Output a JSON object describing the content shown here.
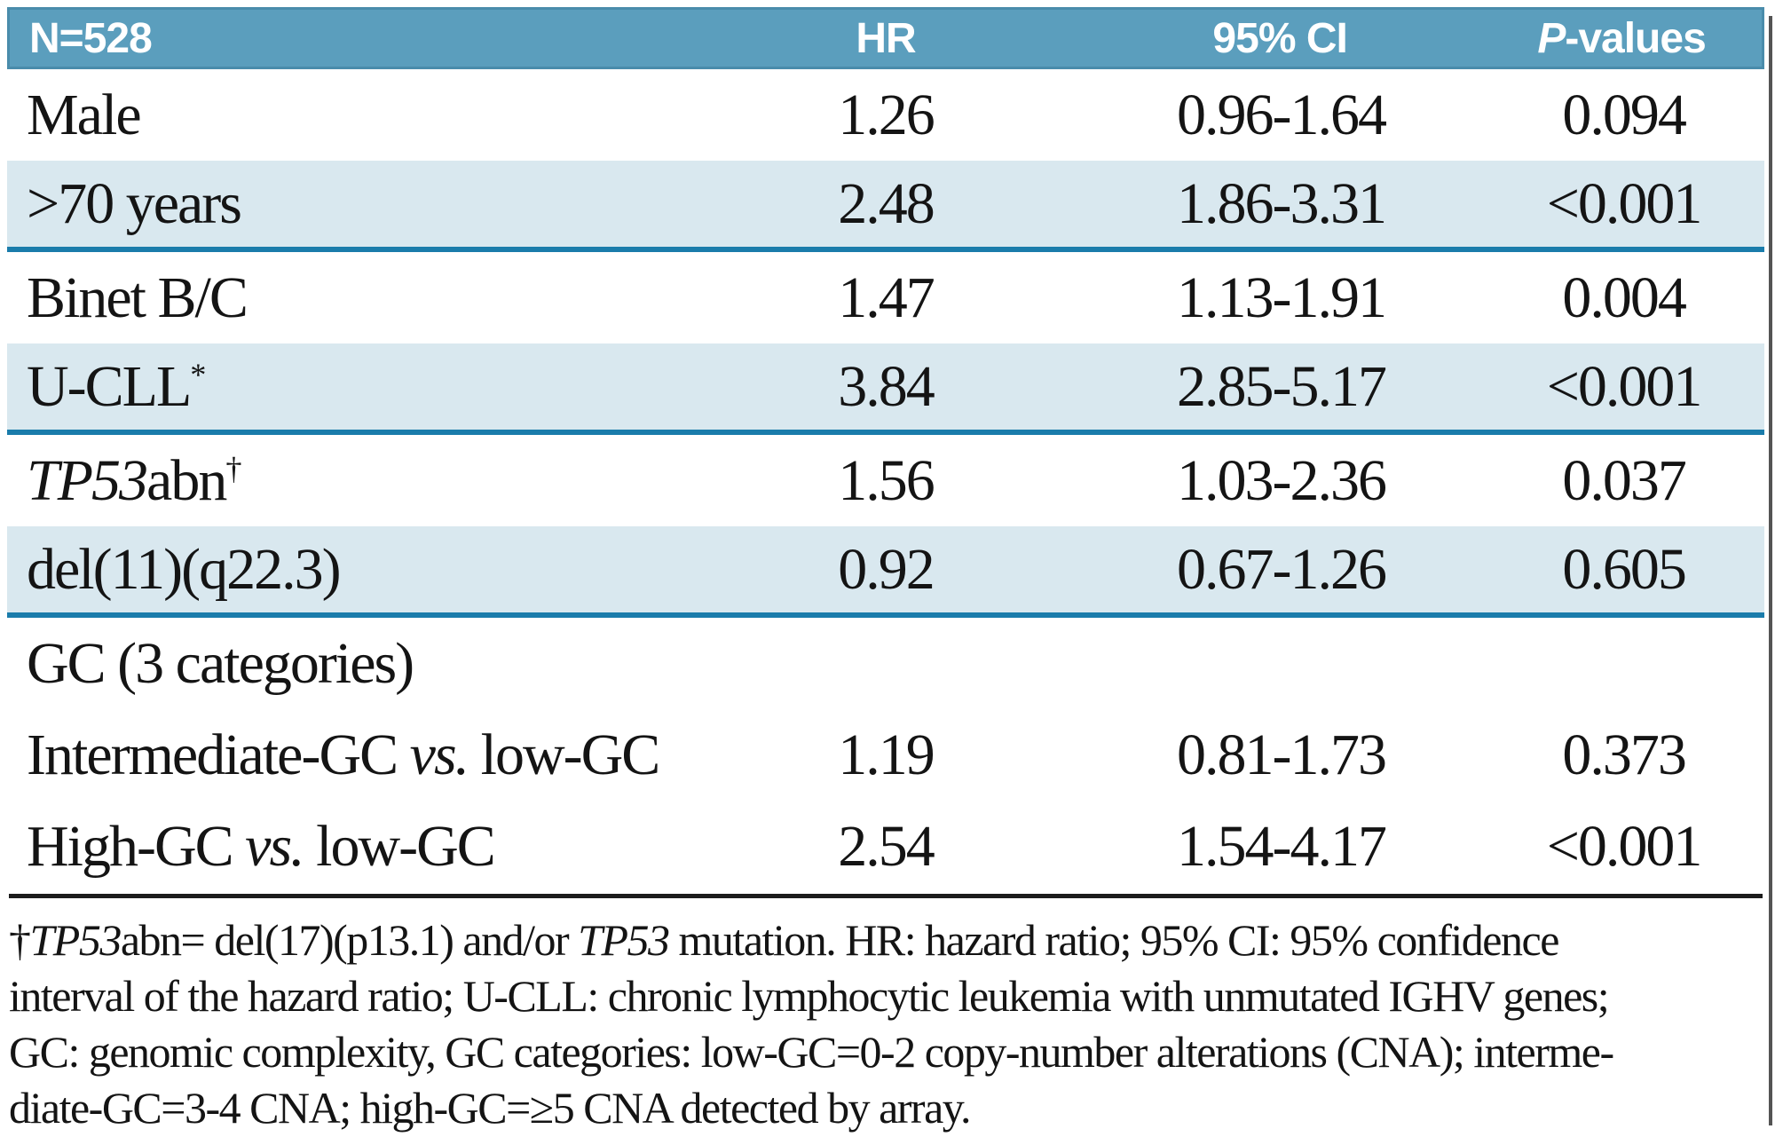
{
  "table": {
    "header": {
      "n": "N=528",
      "hr": "HR",
      "ci": "95% CI",
      "p_parts": [
        {
          "t": "P",
          "style": "i"
        },
        {
          "t": "-values"
        }
      ]
    },
    "rows": [
      {
        "label_parts": [
          {
            "t": "Male"
          }
        ],
        "hr": "1.26",
        "ci": "0.96-1.64",
        "p": "0.094",
        "shaded": false
      },
      {
        "label_parts": [
          {
            "t": ">70 years"
          }
        ],
        "hr": "2.48",
        "ci": "1.86-3.31",
        "p": "<0.001",
        "shaded": true
      },
      {
        "label_parts": [
          {
            "t": "Binet B/C"
          }
        ],
        "hr": "1.47",
        "ci": "1.13-1.91",
        "p": "0.004",
        "shaded": false
      },
      {
        "label_parts": [
          {
            "t": "U-CLL"
          },
          {
            "t": "*",
            "style": "sup"
          }
        ],
        "hr": "3.84",
        "ci": "2.85-5.17",
        "p": "<0.001",
        "shaded": true
      },
      {
        "label_parts": [
          {
            "t": "TP53",
            "style": "i"
          },
          {
            "t": "abn"
          },
          {
            "t": "†",
            "style": "sup"
          }
        ],
        "hr": "1.56",
        "ci": "1.03-2.36",
        "p": "0.037",
        "shaded": false
      },
      {
        "label_parts": [
          {
            "t": "del(11)(q22.3)"
          }
        ],
        "hr": "0.92",
        "ci": "0.67-1.26",
        "p": "0.605",
        "shaded": true
      },
      {
        "label_parts": [
          {
            "t": "GC (3 categories)"
          }
        ],
        "hr": "",
        "ci": "",
        "p": "",
        "shaded": false
      },
      {
        "label_parts": [
          {
            "t": "Intermediate-GC "
          },
          {
            "t": "vs.",
            "style": "i"
          },
          {
            "t": " low-GC"
          }
        ],
        "hr": "1.19",
        "ci": "0.81-1.73",
        "p": "0.373",
        "shaded": false
      },
      {
        "label_parts": [
          {
            "t": "High-GC "
          },
          {
            "t": "vs.",
            "style": "i"
          },
          {
            "t": " low-GC"
          }
        ],
        "hr": "2.54",
        "ci": "1.54-4.17",
        "p": "<0.001",
        "shaded": false
      }
    ]
  },
  "footnote": {
    "lines": [
      [
        {
          "t": "†"
        },
        {
          "t": "TP53",
          "style": "i"
        },
        {
          "t": "abn= del(17)(p13.1) and/or "
        },
        {
          "t": "TP53",
          "style": "i"
        },
        {
          "t": " mutation. HR: hazard ratio; 95% CI: 95% confidence"
        }
      ],
      [
        {
          "t": "interval of the hazard ratio; U-CLL: chronic lymphocytic leukemia with unmutated IGHV genes;"
        }
      ],
      [
        {
          "t": "GC: genomic complexity, GC categories: low-GC=0-2 copy-number alterations (CNA); interme-"
        }
      ],
      [
        {
          "t": "diate-GC=3-4 CNA; high-GC=≥5 CNA detected by array."
        }
      ]
    ]
  },
  "colors": {
    "header_bg": "#5b9ebd",
    "header_border": "#4a8cab",
    "row_shade": "#d9e8ef",
    "blue_rule": "#1a7cab",
    "black_rule": "#1c1c1c",
    "text": "#141414"
  }
}
